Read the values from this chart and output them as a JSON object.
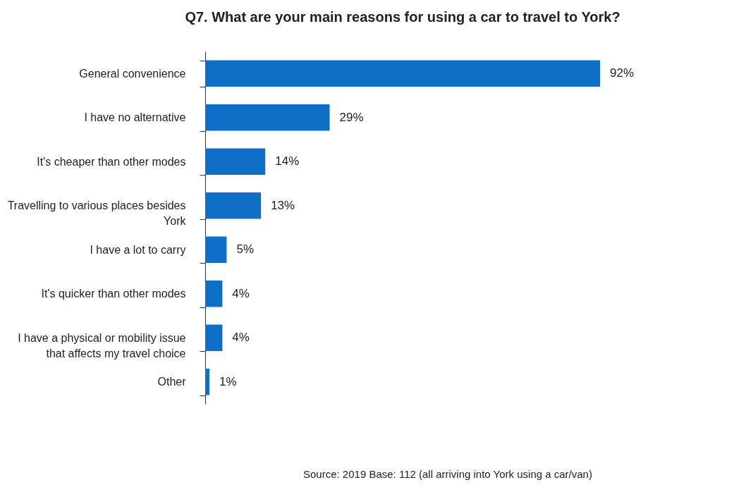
{
  "chart_data": {
    "type": "bar",
    "orientation": "horizontal",
    "title": "Q7. What are your main reasons for using a car to travel to York?",
    "categories": [
      "General convenience",
      "I have no alternative",
      "It's cheaper than other modes",
      "Travelling to various places besides York",
      "I have a lot to carry",
      "It's quicker than other modes",
      "I have a physical or mobility issue that affects my travel choice",
      "Other"
    ],
    "values": [
      92,
      29,
      14,
      13,
      5,
      4,
      4,
      1
    ],
    "value_labels": [
      "92%",
      "29%",
      "14%",
      "13%",
      "5%",
      "4%",
      "4%",
      "1%"
    ],
    "color": "#0f6fc6",
    "tick_labels": "y",
    "annotations": [
      "Source: 2019   Base: 112 (all arriving into York using a car/van)"
    ]
  }
}
